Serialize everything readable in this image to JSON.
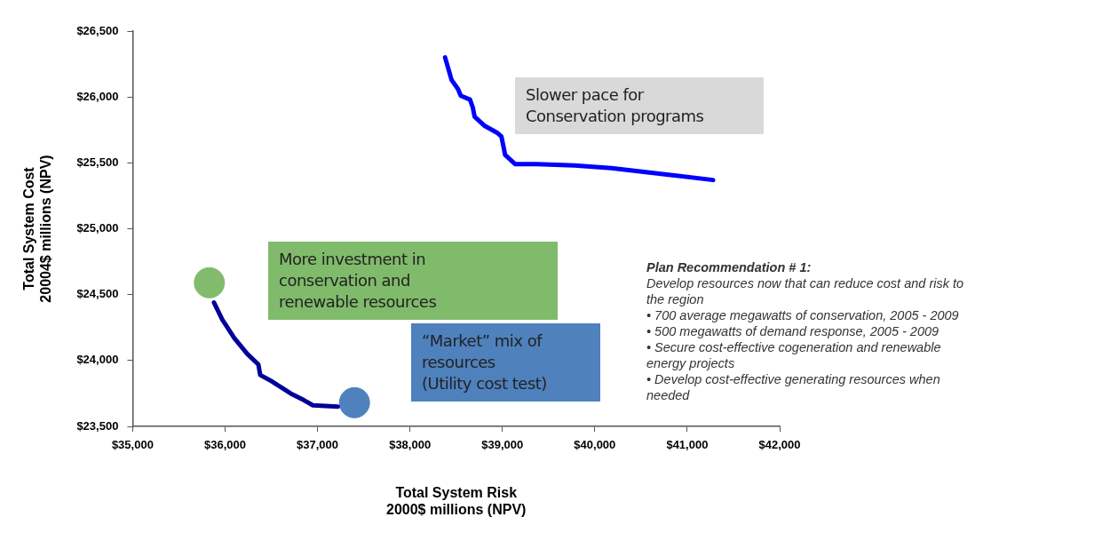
{
  "chart_data": {
    "type": "line",
    "xlabel": "Total System Risk\n2000$ millions (NPV)",
    "ylabel": "Total System Cost\n20004$ millions (NPV)",
    "xlim": [
      35000,
      42000
    ],
    "ylim": [
      23500,
      26500
    ],
    "xticks": [
      {
        "value": 35000,
        "label": "$35,000"
      },
      {
        "value": 36000,
        "label": "$36,000"
      },
      {
        "value": 37000,
        "label": "$37,000"
      },
      {
        "value": 38000,
        "label": "$38,000"
      },
      {
        "value": 39000,
        "label": "$39,000"
      },
      {
        "value": 40000,
        "label": "$40,000"
      },
      {
        "value": 41000,
        "label": "$41,000"
      },
      {
        "value": 42000,
        "label": "$42,000"
      }
    ],
    "yticks": [
      {
        "value": 23500,
        "label": "$23,500"
      },
      {
        "value": 24000,
        "label": "$24,000"
      },
      {
        "value": 24500,
        "label": "$24,500"
      },
      {
        "value": 25000,
        "label": "$25,000"
      },
      {
        "value": 25500,
        "label": "$25,500"
      },
      {
        "value": 26000,
        "label": "$26,000"
      },
      {
        "value": 26500,
        "label": "$26,500"
      }
    ],
    "grid": false,
    "legend": false,
    "series": [
      {
        "color": "#0000ff",
        "x": [
          38380,
          38450,
          38520,
          38550,
          38650,
          38680,
          38700,
          38810,
          38940,
          38990,
          39010,
          39030,
          39140,
          39370,
          39780,
          40180,
          40800,
          41280
        ],
        "values": [
          26300,
          26130,
          26060,
          26010,
          25980,
          25920,
          25850,
          25780,
          25730,
          25700,
          25630,
          25560,
          25490,
          25490,
          25480,
          25460,
          25410,
          25370
        ]
      },
      {
        "color": "#000099",
        "x": [
          35880,
          35970,
          36100,
          36240,
          36360,
          36380,
          36510,
          36710,
          36850,
          36950,
          37220
        ],
        "values": [
          24440,
          24310,
          24170,
          24050,
          23970,
          23890,
          23840,
          23750,
          23700,
          23660,
          23650
        ]
      },
      {
        "type": "scatter",
        "colors": [
          "#82bb6c",
          "#4f81bd"
        ],
        "x": [
          35830,
          37400
        ],
        "values": [
          24590,
          23680
        ]
      }
    ],
    "annotations": [
      "Slower pace for\nConservation programs",
      "More investment in\nconservation and\nrenewable resources",
      "“Market” mix of\nresources\n(Utility cost test)",
      "Plan Recommendation # 1:\nDevelop resources now that can reduce cost and risk to\nthe region\n•  700 average megawatts of conservation, 2005 - 2009\n•  500 megawatts of demand response, 2005 - 2009\n•  Secure cost-effective cogeneration and renewable\nenergy projects\n•  Develop cost-effective generating resources when\nneeded"
    ]
  }
}
